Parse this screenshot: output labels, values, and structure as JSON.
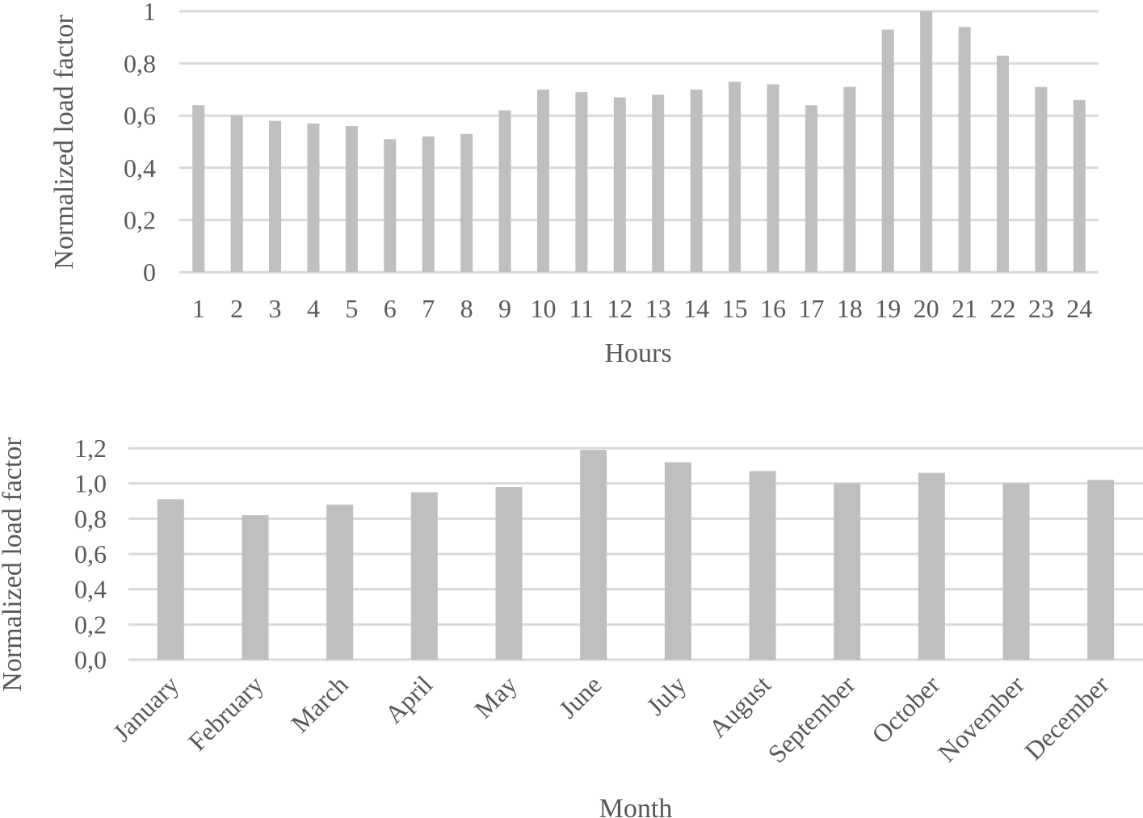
{
  "chart_data": [
    {
      "type": "bar",
      "xlabel": "Hours",
      "ylabel": "Normalized load factor",
      "categories": [
        "1",
        "2",
        "3",
        "4",
        "5",
        "6",
        "7",
        "8",
        "9",
        "10",
        "11",
        "12",
        "13",
        "14",
        "15",
        "16",
        "17",
        "18",
        "19",
        "20",
        "21",
        "22",
        "23",
        "24"
      ],
      "values": [
        0.64,
        0.6,
        0.58,
        0.57,
        0.56,
        0.51,
        0.52,
        0.53,
        0.62,
        0.7,
        0.69,
        0.67,
        0.68,
        0.7,
        0.73,
        0.72,
        0.64,
        0.71,
        0.93,
        1.0,
        0.94,
        0.83,
        0.71,
        0.66
      ],
      "ylim": [
        0,
        1
      ],
      "yticks": [
        0,
        0.2,
        0.4,
        0.6,
        0.8,
        1
      ],
      "ytick_labels": [
        "0",
        "0,2",
        "0,4",
        "0,6",
        "0,8",
        "1"
      ],
      "grid": true,
      "bar_color": "#bfbfbf"
    },
    {
      "type": "bar",
      "xlabel": "Month",
      "ylabel": "Normalized load factor",
      "categories": [
        "January",
        "February",
        "March",
        "April",
        "May",
        "June",
        "July",
        "August",
        "September",
        "October",
        "November",
        "December"
      ],
      "values": [
        0.91,
        0.82,
        0.88,
        0.95,
        0.98,
        1.19,
        1.12,
        1.07,
        1.0,
        1.06,
        1.0,
        1.02
      ],
      "ylim": [
        0,
        1.2
      ],
      "yticks": [
        0,
        0.2,
        0.4,
        0.6,
        0.8,
        1.0,
        1.2
      ],
      "ytick_labels": [
        "0,0",
        "0,2",
        "0,4",
        "0,6",
        "0,8",
        "1,0",
        "1,2"
      ],
      "grid": true,
      "bar_color": "#bfbfbf"
    }
  ]
}
